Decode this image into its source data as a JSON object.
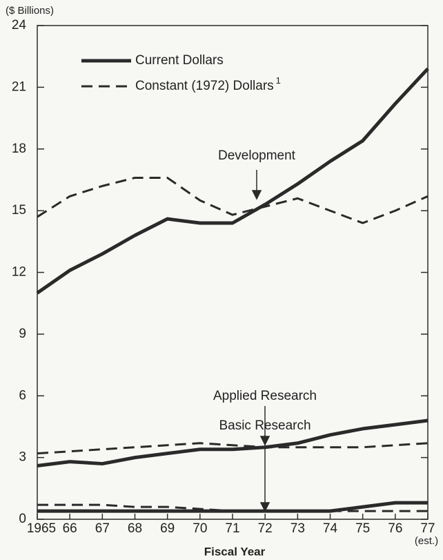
{
  "chart_data": {
    "type": "line",
    "y_axis_label": "($ Billions)",
    "x_axis_label": "Fiscal Year",
    "x_note": "(est.)",
    "categories": [
      "1965",
      "66",
      "67",
      "68",
      "69",
      "70",
      "71",
      "72",
      "73",
      "74",
      "75",
      "76",
      "77"
    ],
    "ylim": [
      0,
      24
    ],
    "yticks": [
      0,
      3,
      6,
      9,
      12,
      15,
      18,
      21,
      24
    ],
    "color": "#2a2a2a",
    "legend": [
      {
        "label": "Current Dollars",
        "style": "solid"
      },
      {
        "label": "Constant (1972) Dollars",
        "note": "1",
        "style": "dashed"
      }
    ],
    "groups": [
      {
        "label": "Development",
        "current": [
          11.0,
          12.1,
          12.9,
          13.8,
          14.6,
          14.4,
          14.4,
          15.3,
          16.3,
          17.4,
          18.4,
          20.2,
          21.9
        ],
        "constant": [
          14.7,
          15.7,
          16.2,
          16.6,
          16.6,
          15.5,
          14.8,
          15.2,
          15.6,
          15.0,
          14.4,
          15.0,
          15.7
        ]
      },
      {
        "label": "Applied Research",
        "current": [
          2.6,
          2.8,
          2.7,
          3.0,
          3.2,
          3.4,
          3.4,
          3.5,
          3.7,
          4.1,
          4.4,
          4.6,
          4.8
        ],
        "constant": [
          3.2,
          3.3,
          3.4,
          3.5,
          3.6,
          3.7,
          3.6,
          3.5,
          3.5,
          3.5,
          3.5,
          3.6,
          3.7
        ]
      },
      {
        "label": "Basic Research",
        "current": [
          0.4,
          0.4,
          0.4,
          0.4,
          0.4,
          0.4,
          0.4,
          0.4,
          0.4,
          0.4,
          0.6,
          0.8,
          0.8
        ],
        "constant": [
          0.7,
          0.7,
          0.7,
          0.6,
          0.6,
          0.5,
          0.4,
          0.4,
          0.4,
          0.4,
          0.4,
          0.4,
          0.4
        ]
      }
    ]
  }
}
